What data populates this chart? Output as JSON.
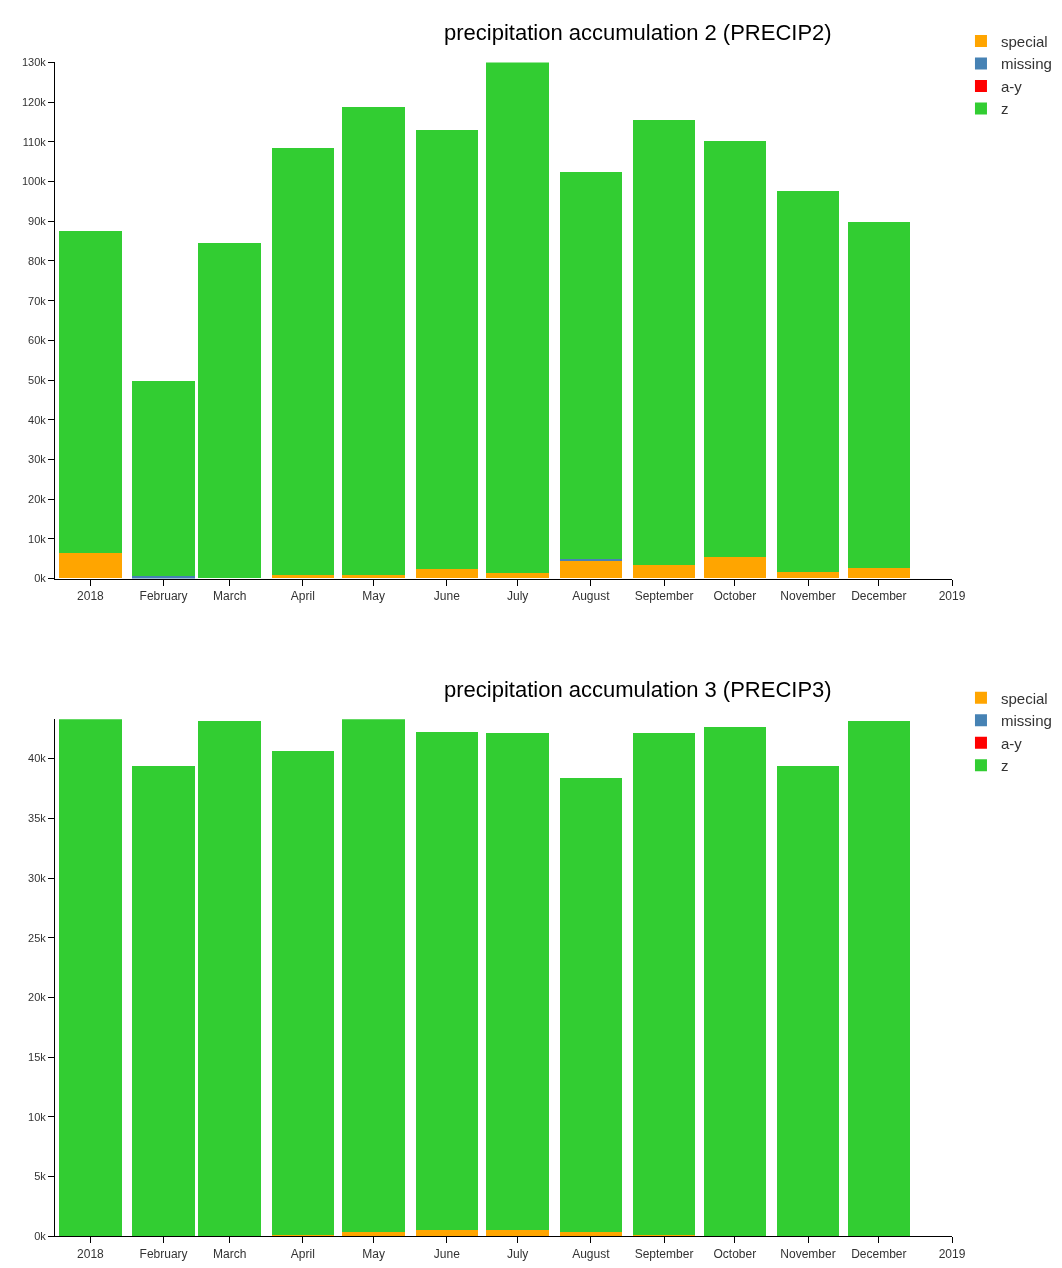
{
  "chart_data": [
    {
      "type": "bar",
      "title": "precipitation accumulation 2 (PRECIP2)",
      "stacked": true,
      "legend": "top right",
      "x": [
        "2018-01-01",
        "2018-02-01",
        "2018-03-01",
        "2018-04-01",
        "2018-05-01",
        "2018-06-01",
        "2018-07-01",
        "2018-08-01",
        "2018-09-01",
        "2018-10-01",
        "2018-11-01",
        "2018-12-01"
      ],
      "xlim": [
        "2017-12-17",
        "2019-01-01"
      ],
      "xticks": [
        {
          "value": "2018-01-01",
          "label": "2018"
        },
        {
          "value": "2018-02-01",
          "label": "February"
        },
        {
          "value": "2018-03-01",
          "label": "March"
        },
        {
          "value": "2018-04-01",
          "label": "April"
        },
        {
          "value": "2018-05-01",
          "label": "May"
        },
        {
          "value": "2018-06-01",
          "label": "June"
        },
        {
          "value": "2018-07-01",
          "label": "July"
        },
        {
          "value": "2018-08-01",
          "label": "August"
        },
        {
          "value": "2018-09-01",
          "label": "September"
        },
        {
          "value": "2018-10-01",
          "label": "October"
        },
        {
          "value": "2018-11-01",
          "label": "November"
        },
        {
          "value": "2018-12-01",
          "label": "December"
        },
        {
          "value": "2019-01-01",
          "label": "2019"
        }
      ],
      "ylim": [
        0,
        130000
      ],
      "yticks": [
        {
          "value": 0,
          "label": "0k"
        },
        {
          "value": 10000,
          "label": "10k"
        },
        {
          "value": 20000,
          "label": "20k"
        },
        {
          "value": 30000,
          "label": "30k"
        },
        {
          "value": 40000,
          "label": "40k"
        },
        {
          "value": 50000,
          "label": "50k"
        },
        {
          "value": 60000,
          "label": "60k"
        },
        {
          "value": 70000,
          "label": "70k"
        },
        {
          "value": 80000,
          "label": "80k"
        },
        {
          "value": 90000,
          "label": "90k"
        },
        {
          "value": 100000,
          "label": "100k"
        },
        {
          "value": 110000,
          "label": "110k"
        },
        {
          "value": 120000,
          "label": "120k"
        },
        {
          "value": 130000,
          "label": "130k"
        }
      ],
      "series": [
        {
          "name": "special",
          "color": "#ffa500",
          "values": [
            6200,
            0,
            0,
            700,
            700,
            2200,
            1200,
            4500,
            3300,
            5400,
            1500,
            2600
          ]
        },
        {
          "name": "missing",
          "color": "#4682b4",
          "values": [
            0,
            500,
            0,
            0,
            0,
            0,
            0,
            300,
            0,
            0,
            0,
            0
          ]
        },
        {
          "name": "a-y",
          "color": "#ff0000",
          "values": [
            0,
            0,
            0,
            0,
            0,
            0,
            0,
            0,
            0,
            0,
            0,
            0
          ]
        },
        {
          "name": "z",
          "color": "#32cd32",
          "values": [
            81200,
            49100,
            84500,
            107600,
            118000,
            110700,
            128800,
            97600,
            112100,
            104600,
            96000,
            87000
          ]
        }
      ]
    },
    {
      "type": "bar",
      "title": "precipitation accumulation 3 (PRECIP3)",
      "stacked": true,
      "legend": "top right",
      "x": [
        "2018-01-01",
        "2018-02-01",
        "2018-03-01",
        "2018-04-01",
        "2018-05-01",
        "2018-06-01",
        "2018-07-01",
        "2018-08-01",
        "2018-09-01",
        "2018-10-01",
        "2018-11-01",
        "2018-12-01"
      ],
      "xlim": [
        "2017-12-17",
        "2019-01-01"
      ],
      "xticks": [
        {
          "value": "2018-01-01",
          "label": "2018"
        },
        {
          "value": "2018-02-01",
          "label": "February"
        },
        {
          "value": "2018-03-01",
          "label": "March"
        },
        {
          "value": "2018-04-01",
          "label": "April"
        },
        {
          "value": "2018-05-01",
          "label": "May"
        },
        {
          "value": "2018-06-01",
          "label": "June"
        },
        {
          "value": "2018-07-01",
          "label": "July"
        },
        {
          "value": "2018-08-01",
          "label": "August"
        },
        {
          "value": "2018-09-01",
          "label": "September"
        },
        {
          "value": "2018-10-01",
          "label": "October"
        },
        {
          "value": "2018-11-01",
          "label": "November"
        },
        {
          "value": "2018-12-01",
          "label": "December"
        },
        {
          "value": "2019-01-01",
          "label": "2019"
        }
      ],
      "ylim": [
        0,
        43300
      ],
      "yticks": [
        {
          "value": 0,
          "label": "0k"
        },
        {
          "value": 5000,
          "label": "5k"
        },
        {
          "value": 10000,
          "label": "10k"
        },
        {
          "value": 15000,
          "label": "15k"
        },
        {
          "value": 20000,
          "label": "20k"
        },
        {
          "value": 25000,
          "label": "25k"
        },
        {
          "value": 30000,
          "label": "30k"
        },
        {
          "value": 35000,
          "label": "35k"
        },
        {
          "value": 40000,
          "label": "40k"
        }
      ],
      "series": [
        {
          "name": "special",
          "color": "#ffa500",
          "values": [
            0,
            0,
            0,
            100,
            300,
            500,
            500,
            300,
            100,
            0,
            0,
            0
          ]
        },
        {
          "name": "missing",
          "color": "#4682b4",
          "values": [
            0,
            0,
            0,
            0,
            0,
            0,
            0,
            0,
            0,
            0,
            0,
            0
          ]
        },
        {
          "name": "a-y",
          "color": "#ff0000",
          "values": [
            0,
            0,
            0,
            0,
            0,
            0,
            0,
            0,
            0,
            0,
            0,
            0
          ]
        },
        {
          "name": "z",
          "color": "#32cd32",
          "values": [
            43300,
            39400,
            43100,
            40500,
            43000,
            41700,
            41600,
            38100,
            42000,
            42600,
            39400,
            43100
          ]
        }
      ]
    }
  ]
}
